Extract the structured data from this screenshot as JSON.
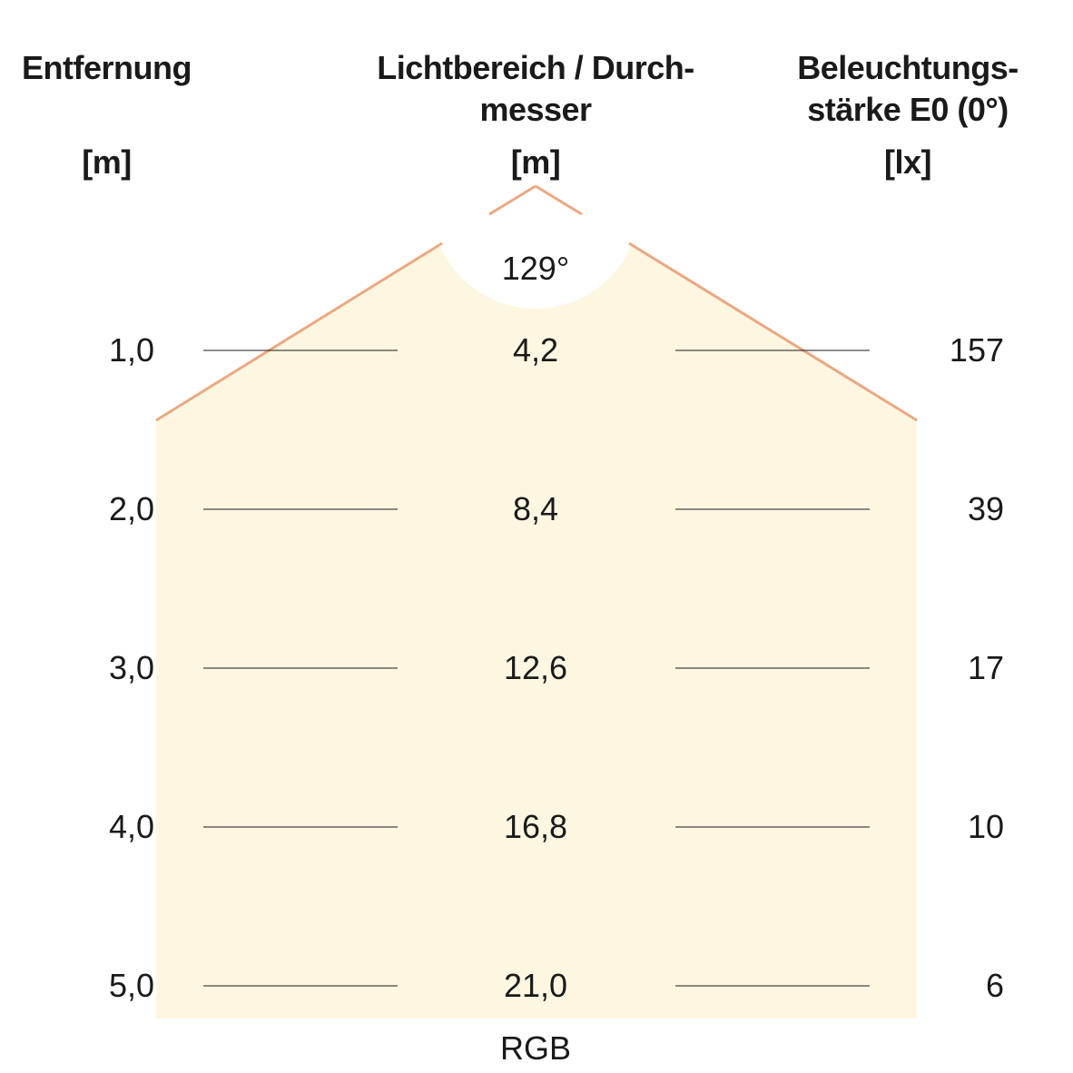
{
  "headers": {
    "distance": {
      "line1": "Entfernung",
      "unit": "[m]"
    },
    "diameter": {
      "line1": "Lichtbereich / Durch-",
      "line2": "messer",
      "unit": "[m]"
    },
    "illuminance": {
      "line1": "Beleuchtungs-",
      "line2": "stärke E0 (0°)",
      "unit": "[lx]"
    }
  },
  "beam_angle": "129°",
  "rows": [
    {
      "distance": "1,0",
      "diameter": "4,2",
      "illuminance": "157"
    },
    {
      "distance": "2,0",
      "diameter": "8,4",
      "illuminance": "39"
    },
    {
      "distance": "3,0",
      "diameter": "12,6",
      "illuminance": "17"
    },
    {
      "distance": "4,0",
      "diameter": "16,8",
      "illuminance": "10"
    },
    {
      "distance": "5,0",
      "diameter": "21,0",
      "illuminance": "6"
    }
  ],
  "footer_label": "RGB",
  "colors": {
    "light_fill": "#fdf7e1",
    "beam_edge": "#eba882",
    "text": "#1a1a1a",
    "rule": "#1a1a1a"
  }
}
